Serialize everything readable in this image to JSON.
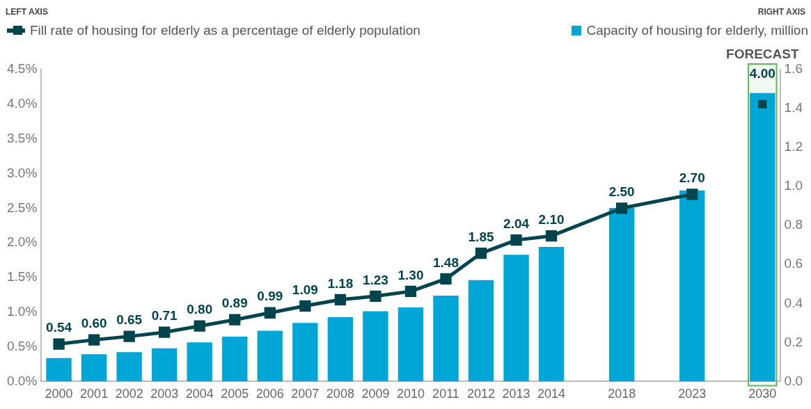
{
  "chart_data": {
    "type": "bar",
    "annotations": [
      "LEFT AXIS",
      "RIGHT AXIS"
    ],
    "legend": "top",
    "categories": [
      "2000",
      "2001",
      "2002",
      "2003",
      "2004",
      "2005",
      "2006",
      "2007",
      "2008",
      "2009",
      "2010",
      "2011",
      "2012",
      "2013",
      "2014",
      null,
      "2018",
      null,
      "2023",
      null,
      "2030"
    ],
    "series": [
      {
        "name": "Fill rate of housing for elderly as a percentage of elderly population",
        "type": "line",
        "color": "#00454d",
        "marker": "square",
        "values": [
          0.54,
          0.6,
          0.65,
          0.71,
          0.8,
          0.89,
          0.99,
          1.09,
          1.18,
          1.23,
          1.3,
          1.48,
          1.85,
          2.04,
          2.1,
          null,
          2.5,
          null,
          2.7,
          null,
          null
        ],
        "value_labels": [
          "0.54",
          "0.60",
          "0.65",
          "0.71",
          "0.80",
          "0.89",
          "0.99",
          "1.09",
          "1.18",
          "1.23",
          "1.30",
          "1.48",
          "1.85",
          "2.04",
          "2.10",
          null,
          "2.50",
          null,
          "2.70",
          null,
          null
        ]
      },
      {
        "type": "scatter",
        "color": "#00454d",
        "marker": "square",
        "values": [
          null,
          null,
          null,
          null,
          null,
          null,
          null,
          null,
          null,
          null,
          null,
          null,
          null,
          null,
          null,
          null,
          null,
          null,
          null,
          null,
          4.0
        ],
        "value_labels": [
          null,
          null,
          null,
          null,
          null,
          null,
          null,
          null,
          null,
          null,
          null,
          null,
          null,
          null,
          null,
          null,
          null,
          null,
          null,
          null,
          "4.00"
        ]
      },
      {
        "name": "Capacity of housing for elderly, million",
        "axis": "y2",
        "color": "#00a6d6",
        "values": [
          0.12,
          0.14,
          0.15,
          0.17,
          0.2,
          0.23,
          0.26,
          0.3,
          0.33,
          0.36,
          0.38,
          0.44,
          0.52,
          0.65,
          0.69,
          null,
          0.89,
          null,
          0.98,
          null,
          1.48
        ]
      }
    ],
    "ylim": [
      0,
      4.5
    ],
    "yticks": [
      {
        "value": 0,
        "label": "0.0%"
      },
      {
        "value": 0.5,
        "label": "0.5%"
      },
      {
        "value": 1,
        "label": "1.0%"
      },
      {
        "value": 1.5,
        "label": "1.5%"
      },
      {
        "value": 2,
        "label": "2.0%"
      },
      {
        "value": 2.5,
        "label": "2.5%"
      },
      {
        "value": 3,
        "label": "3.0%"
      },
      {
        "value": 3.5,
        "label": "3.5%"
      },
      {
        "value": 4,
        "label": "4.0%"
      },
      {
        "value": 4.5,
        "label": "4.5%"
      }
    ],
    "y2lim": [
      0,
      1.6
    ],
    "y2ticks": [
      {
        "value": 0,
        "label": "0.0"
      },
      {
        "value": 0.2,
        "label": "0.2"
      },
      {
        "value": 0.4,
        "label": "0.4"
      },
      {
        "value": 0.6,
        "label": "0.6"
      },
      {
        "value": 0.8,
        "label": "0.8"
      },
      {
        "value": 1,
        "label": "1.0"
      },
      {
        "value": 1.2,
        "label": "1.2"
      },
      {
        "value": 1.4,
        "label": "1.4"
      },
      {
        "value": 1.6,
        "label": "1.6"
      }
    ],
    "bands": [
      {
        "axis": "x",
        "from": "2030",
        "to": "2030",
        "label": "FORECAST",
        "color": "#5cb85c"
      }
    ],
    "grid": false
  }
}
